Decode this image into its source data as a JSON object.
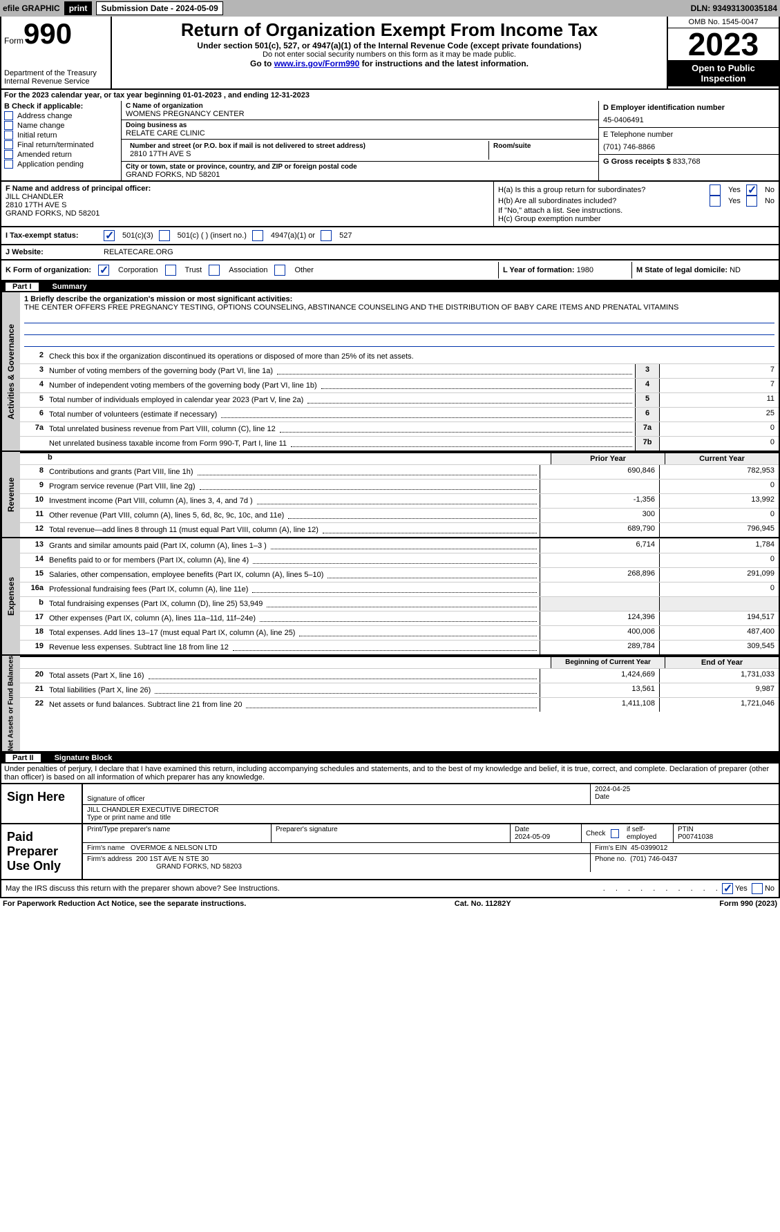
{
  "topbar": {
    "efile": "efile GRAPHIC",
    "print": "print",
    "submission_label": "Submission Date - 2024-05-09",
    "dln": "DLN: 93493130035184"
  },
  "header": {
    "form_label": "Form",
    "form_number": "990",
    "dept1": "Department of the Treasury",
    "dept2": "Internal Revenue Service",
    "title": "Return of Organization Exempt From Income Tax",
    "subtitle": "Under section 501(c), 527, or 4947(a)(1) of the Internal Revenue Code (except private foundations)",
    "note": "Do not enter social security numbers on this form as it may be made public.",
    "goto_prefix": "Go to ",
    "goto_link": "www.irs.gov/Form990",
    "goto_suffix": " for instructions and the latest information.",
    "omb": "OMB No. 1545-0047",
    "year": "2023",
    "inspection": "Open to Public Inspection"
  },
  "period": {
    "text": "For the 2023 calendar year, or tax year beginning 01-01-2023   , and ending 12-31-2023"
  },
  "checkboxes": {
    "label": "B Check if applicable:",
    "items": [
      "Address change",
      "Name change",
      "Initial return",
      "Final return/terminated",
      "Amended return",
      "Application pending"
    ]
  },
  "entity": {
    "name_label": "C Name of organization",
    "name": "WOMENS PREGNANCY CENTER",
    "dba_label": "Doing business as",
    "dba": "RELATE CARE CLINIC",
    "street_label": "Number and street (or P.O. box if mail is not delivered to street address)",
    "street": "2810 17TH AVE S",
    "room_label": "Room/suite",
    "room": "",
    "city_label": "City or town, state or province, country, and ZIP or foreign postal code",
    "city": "GRAND FORKS, ND  58201",
    "ein_label": "D Employer identification number",
    "ein": "45-0406491",
    "phone_label": "E Telephone number",
    "phone": "(701) 746-8866",
    "gross_label": "G Gross receipts $",
    "gross": "833,768"
  },
  "officer": {
    "label": "F  Name and address of principal officer:",
    "name": "JILL CHANDLER",
    "street": "2810 17TH AVE S",
    "city": "GRAND FORKS, ND  58201"
  },
  "h_section": {
    "ha_label": "H(a)  Is this a group return for subordinates?",
    "hb_label": "H(b)  Are all subordinates included?",
    "hb_note": "If \"No,\" attach a list. See instructions.",
    "hc_label": "H(c)  Group exemption number"
  },
  "status": {
    "label": "I   Tax-exempt status:",
    "opt1": "501(c)(3)",
    "opt2": "501(c) (  ) (insert no.)",
    "opt3": "4947(a)(1) or",
    "opt4": "527"
  },
  "website": {
    "label": "J   Website:",
    "value": "RELATECARE.ORG"
  },
  "formorg": {
    "label": "K Form of organization:",
    "opts": [
      "Corporation",
      "Trust",
      "Association",
      "Other"
    ],
    "year_label": "L Year of formation: ",
    "year": "1980",
    "domicile_label": "M State of legal domicile: ",
    "domicile": "ND"
  },
  "part1": {
    "header_num": "Part I",
    "header_title": "Summary",
    "vtab_gov": "Activities & Governance",
    "vtab_rev": "Revenue",
    "vtab_exp": "Expenses",
    "vtab_net": "Net Assets or Fund Balances",
    "line1_label": "1  Briefly describe the organization's mission or most significant activities:",
    "mission": "THE CENTER OFFERS FREE PREGNANCY TESTING, OPTIONS COUNSELING, ABSTINANCE COUNSELING AND THE DISTRIBUTION OF BABY CARE ITEMS AND PRENATAL VITAMINS",
    "line2": "Check this box        if the organization discontinued its operations or disposed of more than 25% of its net assets.",
    "lines_gov": [
      {
        "n": "3",
        "d": "Number of voting members of the governing body (Part VI, line 1a)",
        "c": "3",
        "v": "7"
      },
      {
        "n": "4",
        "d": "Number of independent voting members of the governing body (Part VI, line 1b)",
        "c": "4",
        "v": "7"
      },
      {
        "n": "5",
        "d": "Total number of individuals employed in calendar year 2023 (Part V, line 2a)",
        "c": "5",
        "v": "11"
      },
      {
        "n": "6",
        "d": "Total number of volunteers (estimate if necessary)",
        "c": "6",
        "v": "25"
      },
      {
        "n": "7a",
        "d": "Total unrelated business revenue from Part VIII, column (C), line 12",
        "c": "7a",
        "v": "0"
      },
      {
        "n": "",
        "d": "Net unrelated business taxable income from Form 990-T, Part I, line 11",
        "c": "7b",
        "v": "0"
      }
    ],
    "prior_label": "Prior Year",
    "current_label": "Current Year",
    "lines_rev": [
      {
        "n": "8",
        "d": "Contributions and grants (Part VIII, line 1h)",
        "p": "690,846",
        "c": "782,953"
      },
      {
        "n": "9",
        "d": "Program service revenue (Part VIII, line 2g)",
        "p": "",
        "c": "0"
      },
      {
        "n": "10",
        "d": "Investment income (Part VIII, column (A), lines 3, 4, and 7d )",
        "p": "-1,356",
        "c": "13,992"
      },
      {
        "n": "11",
        "d": "Other revenue (Part VIII, column (A), lines 5, 6d, 8c, 9c, 10c, and 11e)",
        "p": "300",
        "c": "0"
      },
      {
        "n": "12",
        "d": "Total revenue—add lines 8 through 11 (must equal Part VIII, column (A), line 12)",
        "p": "689,790",
        "c": "796,945"
      }
    ],
    "lines_exp": [
      {
        "n": "13",
        "d": "Grants and similar amounts paid (Part IX, column (A), lines 1–3 )",
        "p": "6,714",
        "c": "1,784"
      },
      {
        "n": "14",
        "d": "Benefits paid to or for members (Part IX, column (A), line 4)",
        "p": "",
        "c": "0"
      },
      {
        "n": "15",
        "d": "Salaries, other compensation, employee benefits (Part IX, column (A), lines 5–10)",
        "p": "268,896",
        "c": "291,099"
      },
      {
        "n": "16a",
        "d": "Professional fundraising fees (Part IX, column (A), line 11e)",
        "p": "",
        "c": "0"
      },
      {
        "n": "b",
        "d": "Total fundraising expenses (Part IX, column (D), line 25) 53,949",
        "p": "shade",
        "c": "shade"
      },
      {
        "n": "17",
        "d": "Other expenses (Part IX, column (A), lines 11a–11d, 11f–24e)",
        "p": "124,396",
        "c": "194,517"
      },
      {
        "n": "18",
        "d": "Total expenses. Add lines 13–17 (must equal Part IX, column (A), line 25)",
        "p": "400,006",
        "c": "487,400"
      },
      {
        "n": "19",
        "d": "Revenue less expenses. Subtract line 18 from line 12",
        "p": "289,784",
        "c": "309,545"
      }
    ],
    "begin_label": "Beginning of Current Year",
    "end_label": "End of Year",
    "lines_net": [
      {
        "n": "20",
        "d": "Total assets (Part X, line 16)",
        "p": "1,424,669",
        "c": "1,731,033"
      },
      {
        "n": "21",
        "d": "Total liabilities (Part X, line 26)",
        "p": "13,561",
        "c": "9,987"
      },
      {
        "n": "22",
        "d": "Net assets or fund balances. Subtract line 21 from line 20",
        "p": "1,411,108",
        "c": "1,721,046"
      }
    ]
  },
  "part2": {
    "header_num": "Part II",
    "header_title": "Signature Block",
    "jurat": "Under penalties of perjury, I declare that I have examined this return, including accompanying schedules and statements, and to the best of my knowledge and belief, it is true, correct, and complete. Declaration of preparer (other than officer) is based on all information of which preparer has any knowledge."
  },
  "sign": {
    "label": "Sign Here",
    "sig_label": "Signature of officer",
    "date": "2024-04-25",
    "date_label": "Date",
    "officer": "JILL CHANDLER  EXECUTIVE DIRECTOR",
    "type_label": "Type or print name and title"
  },
  "paid": {
    "label": "Paid Preparer Use Only",
    "name_label": "Print/Type preparer's name",
    "name": "",
    "sig_label": "Preparer's signature",
    "pdate_label": "Date",
    "pdate": "2024-05-09",
    "check_label": "Check         if self-employed",
    "ptin_label": "PTIN",
    "ptin": "P00741038",
    "firm_label": "Firm's name",
    "firm": "OVERMOE & NELSON LTD",
    "fein_label": "Firm's EIN",
    "fein": "45-0399012",
    "addr_label": "Firm's address",
    "addr1": "200 1ST AVE N STE 30",
    "addr2": "GRAND FORKS, ND  58203",
    "phone_label": "Phone no.",
    "phone": "(701) 746-0437"
  },
  "discuss": "May the IRS discuss this return with the preparer shown above? See Instructions.",
  "footer": {
    "pra": "For Paperwork Reduction Act Notice, see the separate instructions.",
    "cat": "Cat. No. 11282Y",
    "form": "Form 990 (2023)"
  },
  "yesno": {
    "yes": "Yes",
    "no": "No"
  }
}
